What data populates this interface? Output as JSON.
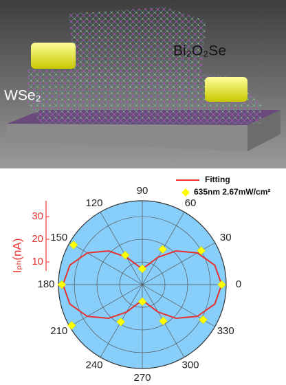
{
  "illustration": {
    "labels": [
      "Bi₂O₂Se",
      "WSe₂"
    ]
  },
  "chart_data": {
    "type": "polar",
    "radial_label": "Iₚₕ(nA)",
    "rlim": [
      0,
      37
    ],
    "rticks": [
      10,
      20,
      30
    ],
    "thetaticks": [
      0,
      30,
      60,
      90,
      120,
      150,
      180,
      210,
      240,
      270,
      300,
      330
    ],
    "background": "#87cefa",
    "grid": true,
    "series": [
      {
        "name": "Fitting",
        "color": "#e8312f",
        "kind": "line",
        "theta": [
          0,
          15,
          30,
          45,
          60,
          75,
          90,
          105,
          120,
          135,
          150,
          165,
          180,
          195,
          210,
          225,
          240,
          255,
          270,
          285,
          300,
          315,
          330,
          345,
          360
        ],
        "values": [
          35,
          33.1,
          28,
          21,
          14,
          8.9,
          7,
          8.9,
          14,
          21,
          28,
          33.1,
          35,
          33.1,
          28,
          21,
          14,
          8.9,
          7,
          8.9,
          14,
          21,
          28,
          33.1,
          35
        ]
      },
      {
        "name": "635nm 2.67mW/cm²",
        "color": "#ffff00",
        "kind": "marker",
        "theta": [
          0,
          30,
          60,
          90,
          120,
          150,
          180,
          210,
          240,
          270,
          300,
          330
        ],
        "values": [
          35,
          30,
          18,
          7,
          15,
          35,
          35.5,
          36,
          19,
          7.5,
          18.5,
          31
        ]
      }
    ]
  }
}
